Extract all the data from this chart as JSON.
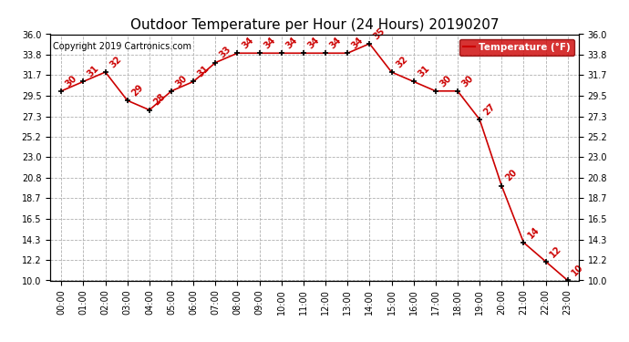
{
  "title": "Outdoor Temperature per Hour (24 Hours) 20190207",
  "copyright": "Copyright 2019 Cartronics.com",
  "legend_label": "Temperature (°F)",
  "hours": [
    0,
    1,
    2,
    3,
    4,
    5,
    6,
    7,
    8,
    9,
    10,
    11,
    12,
    13,
    14,
    15,
    16,
    17,
    18,
    19,
    20,
    21,
    22,
    23
  ],
  "x_labels": [
    "00:00",
    "01:00",
    "02:00",
    "03:00",
    "04:00",
    "05:00",
    "06:00",
    "07:00",
    "08:00",
    "09:00",
    "10:00",
    "11:00",
    "12:00",
    "13:00",
    "14:00",
    "15:00",
    "16:00",
    "17:00",
    "18:00",
    "19:00",
    "20:00",
    "21:00",
    "22:00",
    "23:00"
  ],
  "temperatures": [
    30,
    31,
    32,
    29,
    28,
    30,
    31,
    33,
    34,
    34,
    34,
    34,
    34,
    34,
    35,
    32,
    31,
    30,
    30,
    27,
    20,
    14,
    12,
    10
  ],
  "line_color": "#cc0000",
  "marker_color": "#000000",
  "label_color": "#cc0000",
  "background_color": "#ffffff",
  "grid_color": "#b0b0b0",
  "title_fontsize": 11,
  "copyright_fontsize": 7,
  "label_fontsize": 7,
  "tick_fontsize": 7,
  "ylim_min": 10.0,
  "ylim_max": 36.0,
  "yticks": [
    10.0,
    12.2,
    14.3,
    16.5,
    18.7,
    20.8,
    23.0,
    25.2,
    27.3,
    29.5,
    31.7,
    33.8,
    36.0
  ],
  "legend_bg": "#cc0000",
  "legend_text_color": "#ffffff",
  "fig_width": 6.9,
  "fig_height": 3.75,
  "dpi": 100
}
